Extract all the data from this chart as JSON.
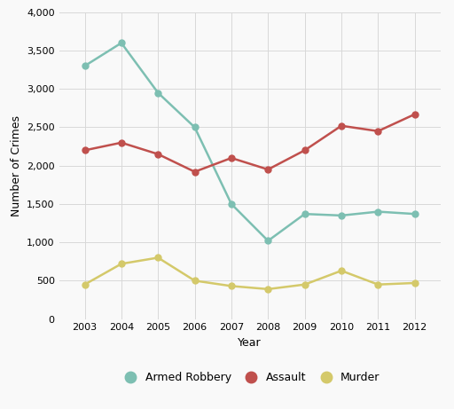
{
  "years": [
    2003,
    2004,
    2005,
    2006,
    2007,
    2008,
    2009,
    2010,
    2011,
    2012
  ],
  "armed_robbery": [
    3300,
    3600,
    2950,
    2500,
    1500,
    1020,
    1370,
    1350,
    1400,
    1370
  ],
  "assault": [
    2200,
    2300,
    2150,
    1920,
    2100,
    1950,
    2200,
    2520,
    2450,
    2670
  ],
  "murder": [
    450,
    720,
    800,
    500,
    430,
    390,
    450,
    630,
    450,
    470
  ],
  "armed_robbery_color": "#7dbfb2",
  "assault_color": "#c0504d",
  "murder_color": "#d4c96a",
  "xlabel": "Year",
  "ylabel": "Number of Crimes",
  "ylim": [
    0,
    4000
  ],
  "yticks": [
    0,
    500,
    1000,
    1500,
    2000,
    2500,
    3000,
    3500,
    4000
  ],
  "legend_labels": [
    "Armed Robbery",
    "Assault",
    "Murder"
  ],
  "background_color": "#f9f9f9",
  "grid_color": "#d8d8d8",
  "marker": "o",
  "markersize": 5,
  "linewidth": 1.8,
  "tick_fontsize": 8,
  "label_fontsize": 9,
  "legend_fontsize": 9
}
